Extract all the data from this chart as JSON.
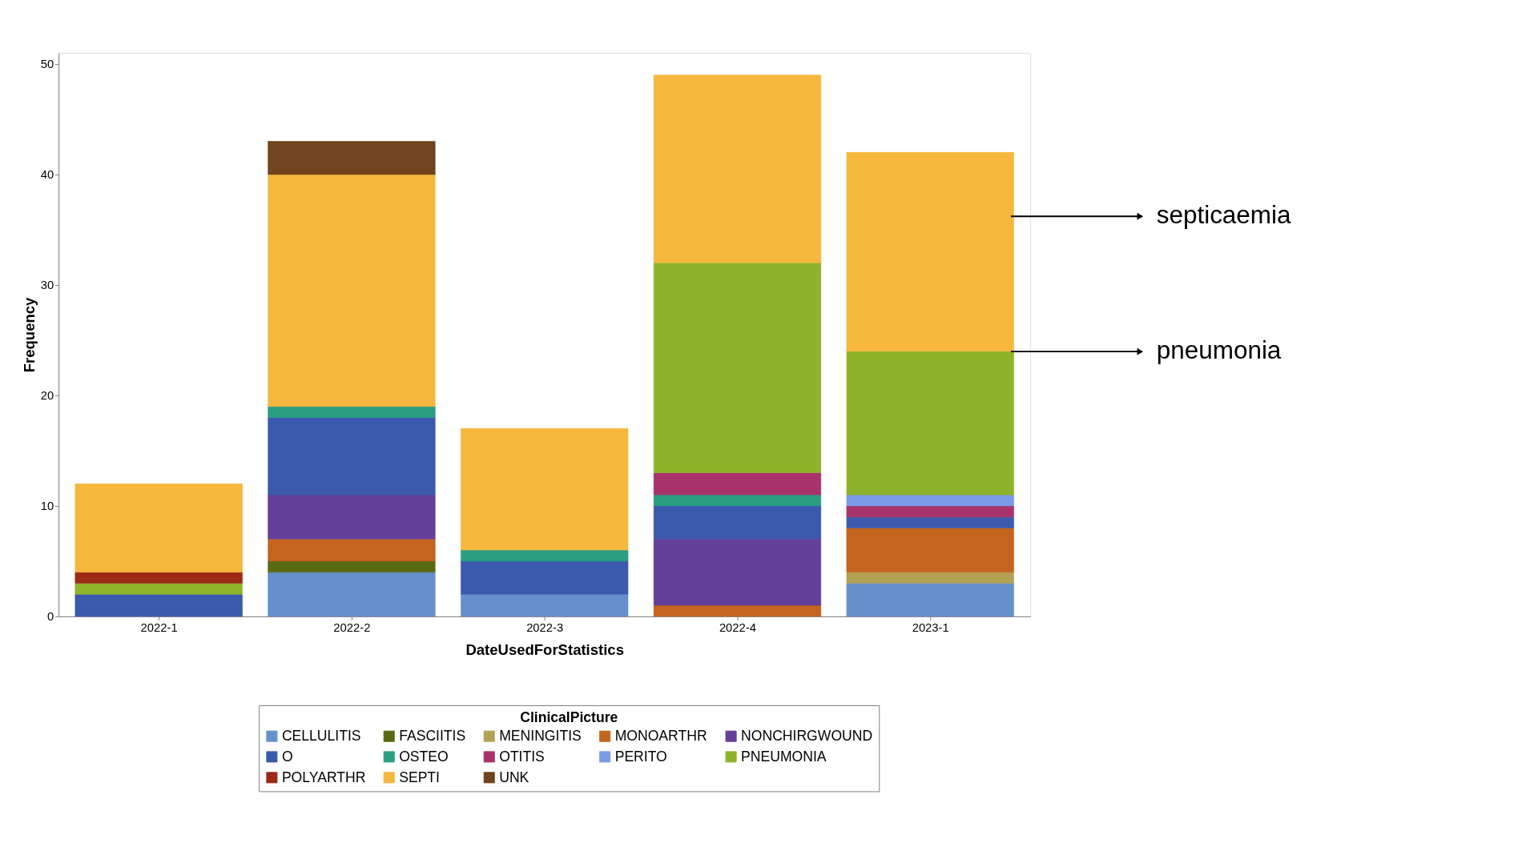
{
  "chart_data": {
    "type": "bar",
    "stacked": true,
    "xlabel": "DateUsedForStatistics",
    "ylabel": "Frequency",
    "legend_title": "ClinicalPicture",
    "categories": [
      "2022-1",
      "2022-2",
      "2022-3",
      "2022-4",
      "2023-1"
    ],
    "series": [
      {
        "name": "CELLULITIS",
        "color": "#6690cc",
        "values": [
          null,
          4,
          2,
          null,
          3
        ]
      },
      {
        "name": "FASCIITIS",
        "color": "#576a12",
        "values": [
          null,
          1,
          null,
          null,
          null
        ]
      },
      {
        "name": "MENINGITIS",
        "color": "#b2a254",
        "values": [
          null,
          null,
          null,
          null,
          1
        ]
      },
      {
        "name": "MONOARTHR",
        "color": "#c4641e",
        "values": [
          null,
          2,
          null,
          1,
          4
        ]
      },
      {
        "name": "NONCHIRGWOUND",
        "color": "#643f9a",
        "values": [
          null,
          4,
          null,
          6,
          null
        ]
      },
      {
        "name": "O",
        "color": "#3c5aad",
        "values": [
          2,
          7,
          3,
          3,
          1
        ]
      },
      {
        "name": "OSTEO",
        "color": "#2a9e82",
        "values": [
          null,
          1,
          1,
          1,
          null
        ]
      },
      {
        "name": "OTITIS",
        "color": "#a8336a",
        "values": [
          null,
          null,
          null,
          2,
          1
        ]
      },
      {
        "name": "PERITO",
        "color": "#7b9ae8",
        "values": [
          null,
          null,
          null,
          null,
          1
        ]
      },
      {
        "name": "PNEUMONIA",
        "color": "#8fb32a",
        "values": [
          1,
          null,
          null,
          19,
          13
        ]
      },
      {
        "name": "POLYARTHR",
        "color": "#9a2a16",
        "values": [
          1,
          null,
          null,
          null,
          null
        ]
      },
      {
        "name": "SEPTI",
        "color": "#f5b73d",
        "values": [
          8,
          21,
          11,
          17,
          18
        ]
      },
      {
        "name": "UNK",
        "color": "#70441c",
        "values": [
          null,
          3,
          null,
          null,
          null
        ]
      }
    ],
    "ylim": [
      0,
      51
    ],
    "yticks": [
      0,
      10,
      20,
      30,
      40,
      50
    ],
    "grid": false,
    "legend": "bottom",
    "annotations": [
      "septicaemia",
      "pneumonia"
    ]
  }
}
